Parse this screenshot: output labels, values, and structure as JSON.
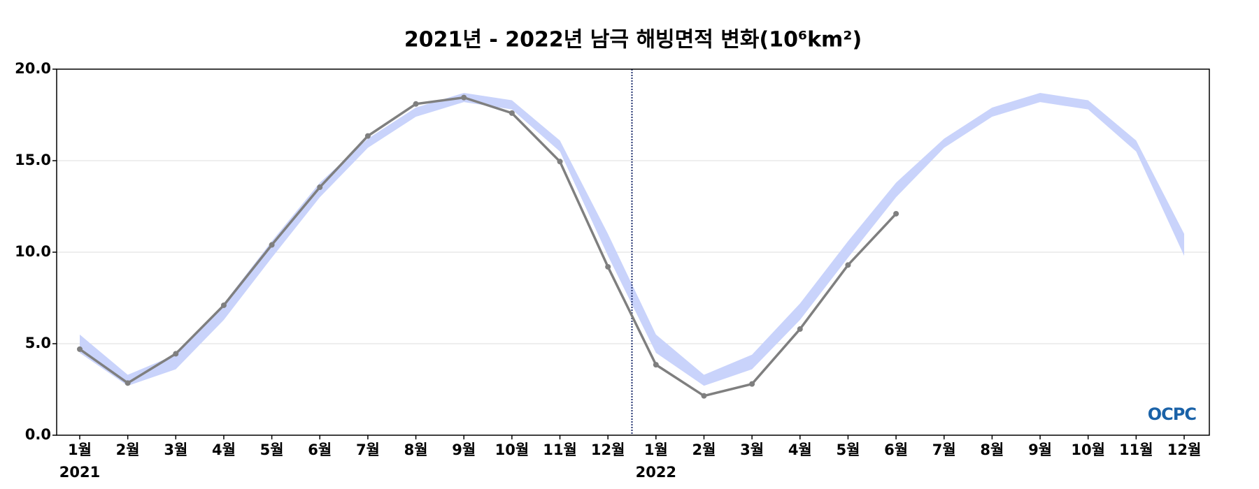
{
  "chart_data": {
    "type": "line",
    "title": "2021년 - 2022년 남극 해빙면적 변화(10⁶km²)",
    "categories": [
      "1월",
      "2월",
      "3월",
      "4월",
      "5월",
      "6월",
      "7월",
      "8월",
      "9월",
      "10월",
      "11월",
      "12월",
      "1월",
      "2월",
      "3월",
      "4월",
      "5월",
      "6월",
      "7월",
      "8월",
      "9월",
      "10월",
      "11월",
      "12월"
    ],
    "years": [
      "2021",
      "2022"
    ],
    "series": [
      {
        "color": "#7f7f7f",
        "values": [
          4.7,
          2.85,
          4.45,
          7.1,
          10.4,
          13.55,
          16.35,
          18.1,
          18.45,
          17.6,
          14.95,
          9.2,
          3.85,
          2.15,
          2.8,
          5.8,
          9.3,
          12.1,
          null,
          null,
          null,
          null,
          null,
          null
        ]
      }
    ],
    "band": {
      "color": "#c9d3fb",
      "lower": [
        4.5,
        2.7,
        3.6,
        6.3,
        9.7,
        13.0,
        15.7,
        17.4,
        18.2,
        17.8,
        15.5,
        9.8,
        4.5,
        2.7,
        3.6,
        6.3,
        9.7,
        13.0,
        15.7,
        17.4,
        18.2,
        17.8,
        15.5,
        9.8
      ],
      "upper": [
        5.5,
        3.3,
        4.4,
        7.2,
        10.6,
        13.8,
        16.2,
        17.9,
        18.7,
        18.3,
        16.1,
        11.0,
        5.5,
        3.3,
        4.4,
        7.2,
        10.6,
        13.8,
        16.2,
        17.9,
        18.7,
        18.3,
        16.1,
        11.0
      ]
    },
    "ylim": [
      0,
      20
    ],
    "yticks": [
      {
        "value": 0,
        "label": "0.0"
      },
      {
        "value": 5,
        "label": "5.0"
      },
      {
        "value": 10,
        "label": "10.0"
      },
      {
        "value": 15,
        "label": "15.0"
      },
      {
        "value": 20,
        "label": "20.0"
      }
    ],
    "grid": true,
    "logo": "OCPC"
  }
}
